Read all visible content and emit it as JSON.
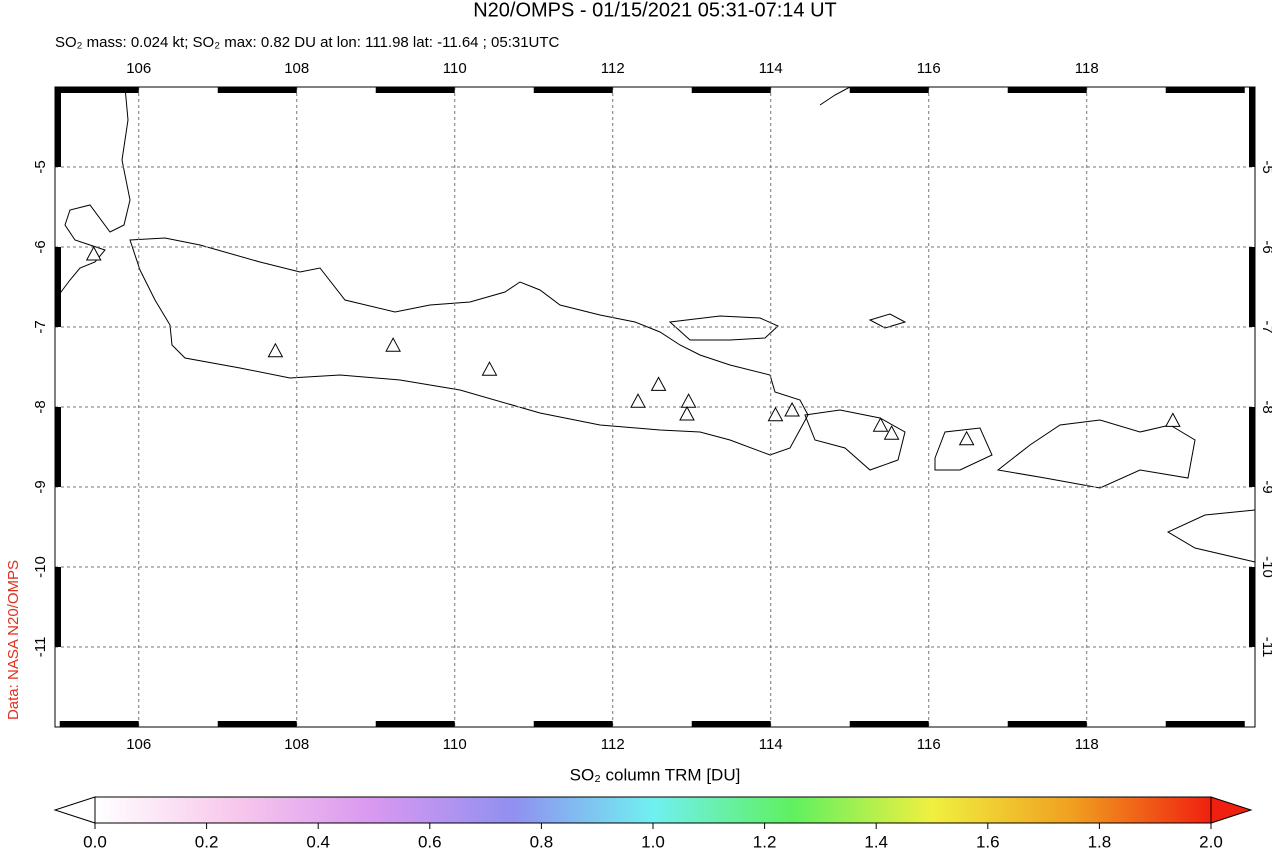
{
  "chart_data": {
    "type": "map",
    "title": "N20/OMPS - 01/15/2021 05:31-07:14 UT",
    "subtitle": "SO₂ mass: 0.024 kt; SO₂ max: 0.82 DU at lon: 111.98 lat: -11.64 ; 05:31UTC",
    "source": "Data: NASA N20/OMPS",
    "xlim": [
      104.94,
      120.13
    ],
    "ylim": [
      -12,
      -4
    ],
    "xticks": [
      106,
      108,
      110,
      112,
      114,
      116,
      118
    ],
    "yticks": [
      -5,
      -6,
      -7,
      -8,
      -9,
      -10,
      -11
    ],
    "grid": true,
    "volcanoes": {
      "lon": [
        105.43,
        107.73,
        109.22,
        110.44,
        112.32,
        112.58,
        112.96,
        112.94,
        114.06,
        114.27,
        115.39,
        115.53,
        116.48,
        119.09
      ],
      "lat": [
        -6.1,
        -7.31,
        -7.24,
        -7.54,
        -7.94,
        -7.73,
        -7.94,
        -8.1,
        -8.11,
        -8.05,
        -8.24,
        -8.34,
        -8.41,
        -8.18
      ]
    },
    "colorbar": {
      "label": "SO₂ column TRM [DU]",
      "lim": [
        0,
        2
      ],
      "colors": [
        "#ffffff",
        "#f8c8ec",
        "#d898f0",
        "#9090f0",
        "#70f0f0",
        "#60f060",
        "#f0f040",
        "#f0a020",
        "#f02010"
      ],
      "ticks": [
        {
          "value": 0,
          "label": "0.0"
        },
        {
          "value": 0.2,
          "label": "0.2"
        },
        {
          "value": 0.4,
          "label": "0.4"
        },
        {
          "value": 0.6,
          "label": "0.6"
        },
        {
          "value": 0.8,
          "label": "0.8"
        },
        {
          "value": 1,
          "label": "1.0"
        },
        {
          "value": 1.2,
          "label": "1.2"
        },
        {
          "value": 1.4,
          "label": "1.4"
        },
        {
          "value": 1.6,
          "label": "1.6"
        },
        {
          "value": 1.8,
          "label": "1.8"
        },
        {
          "value": 2,
          "label": "2.0"
        }
      ]
    }
  }
}
